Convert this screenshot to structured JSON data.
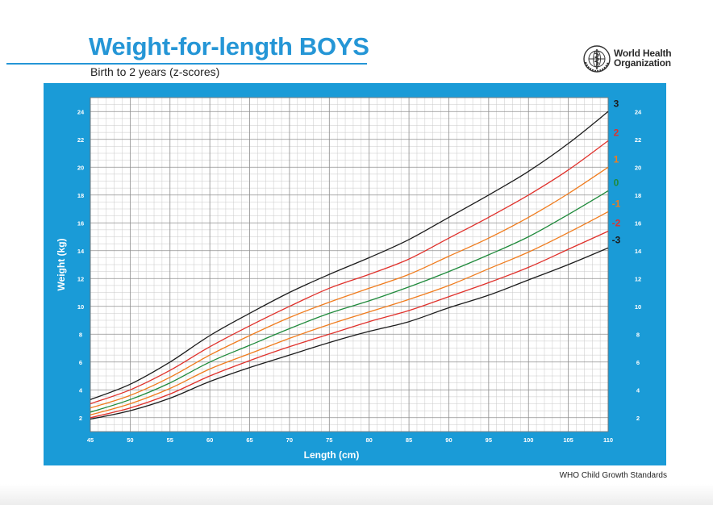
{
  "header": {
    "title": "Weight-for-length BOYS",
    "subtitle": "Birth to 2 years (z-scores)"
  },
  "logo": {
    "icon": "who-emblem-icon",
    "line1": "World Health",
    "line2": "Organization"
  },
  "footer": {
    "text": "WHO Child Growth Standards"
  },
  "colors": {
    "panel": "#1a9bd7",
    "grid_minor": "#c9c9c9",
    "grid_major": "#8f8f8f",
    "title": "#2596d6"
  },
  "chart_data": {
    "type": "line",
    "title": "Weight-for-length BOYS",
    "subtitle": "Birth to 2 years (z-scores)",
    "xlabel": "Length (cm)",
    "ylabel": "Weight (kg)",
    "xlim": [
      45,
      110
    ],
    "ylim": [
      1,
      25
    ],
    "x_ticks": [
      "45",
      "50",
      "55",
      "60",
      "65",
      "70",
      "75",
      "80",
      "85",
      "90",
      "95",
      "100",
      "105",
      "110"
    ],
    "y_ticks": [
      "2",
      "4",
      "6",
      "8",
      "10",
      "12",
      "14",
      "16",
      "18",
      "20",
      "22",
      "24"
    ],
    "grid": true,
    "x": [
      45,
      50,
      55,
      60,
      65,
      70,
      75,
      80,
      85,
      90,
      95,
      100,
      105,
      110
    ],
    "series": [
      {
        "name": "3",
        "color": "#1c1c1c",
        "values": [
          3.3,
          4.4,
          6.0,
          7.9,
          9.5,
          11.0,
          12.3,
          13.5,
          14.8,
          16.4,
          18.0,
          19.7,
          21.7,
          24.0
        ]
      },
      {
        "name": "2",
        "color": "#e0312b",
        "values": [
          3.0,
          4.0,
          5.4,
          7.1,
          8.6,
          10.0,
          11.3,
          12.3,
          13.4,
          14.9,
          16.4,
          18.0,
          19.8,
          21.9
        ]
      },
      {
        "name": "1",
        "color": "#f07c1e",
        "values": [
          2.7,
          3.6,
          4.9,
          6.5,
          7.9,
          9.2,
          10.3,
          11.3,
          12.3,
          13.6,
          14.9,
          16.4,
          18.1,
          20.0
        ]
      },
      {
        "name": "0",
        "color": "#1f8a3b",
        "values": [
          2.4,
          3.3,
          4.5,
          6.0,
          7.2,
          8.4,
          9.5,
          10.4,
          11.4,
          12.5,
          13.7,
          15.0,
          16.6,
          18.3
        ]
      },
      {
        "name": "-1",
        "color": "#f07c1e",
        "values": [
          2.2,
          3.0,
          4.1,
          5.5,
          6.6,
          7.7,
          8.7,
          9.6,
          10.5,
          11.5,
          12.7,
          13.9,
          15.3,
          16.8
        ]
      },
      {
        "name": "-2",
        "color": "#e0312b",
        "values": [
          2.0,
          2.7,
          3.7,
          5.0,
          6.1,
          7.1,
          8.0,
          8.9,
          9.7,
          10.7,
          11.7,
          12.8,
          14.1,
          15.4
        ]
      },
      {
        "name": "-3",
        "color": "#1c1c1c",
        "values": [
          1.9,
          2.5,
          3.4,
          4.6,
          5.6,
          6.5,
          7.4,
          8.2,
          8.9,
          9.9,
          10.8,
          11.9,
          13.0,
          14.2
        ]
      }
    ]
  }
}
